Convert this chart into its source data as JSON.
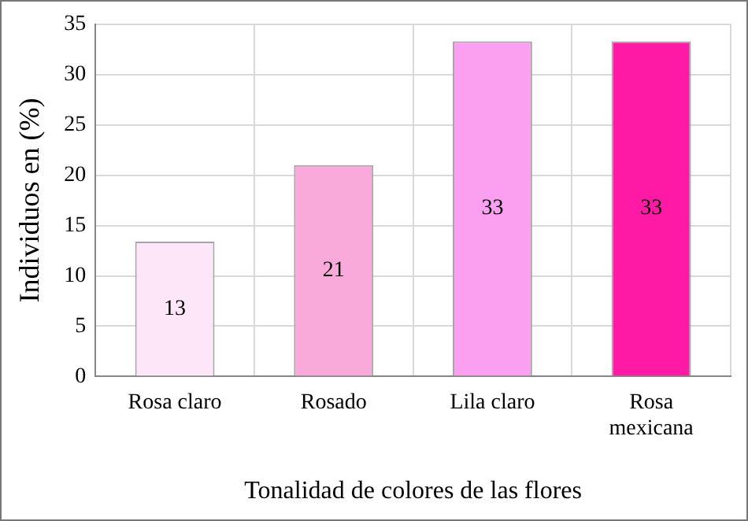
{
  "chart_data": {
    "type": "bar",
    "xlabel": "Tonalidad de colores de las flores",
    "ylabel": "Individuos en (%)",
    "categories": [
      [
        "Rosa claro"
      ],
      [
        "Rosado"
      ],
      [
        "Lila claro"
      ],
      [
        "Rosa",
        "mexicana"
      ]
    ],
    "values": [
      13.4,
      21,
      33.3,
      33.3
    ],
    "colors": [
      "#fde6f8",
      "#f9a9da",
      "#fb9ff0",
      "#ff1aa6"
    ],
    "value_labels": [
      "13",
      "21",
      "33",
      "33"
    ],
    "ylim": [
      0,
      35
    ],
    "yticks": [
      0,
      5,
      10,
      15,
      20,
      25,
      30,
      35
    ],
    "grid": true,
    "legend": false
  }
}
